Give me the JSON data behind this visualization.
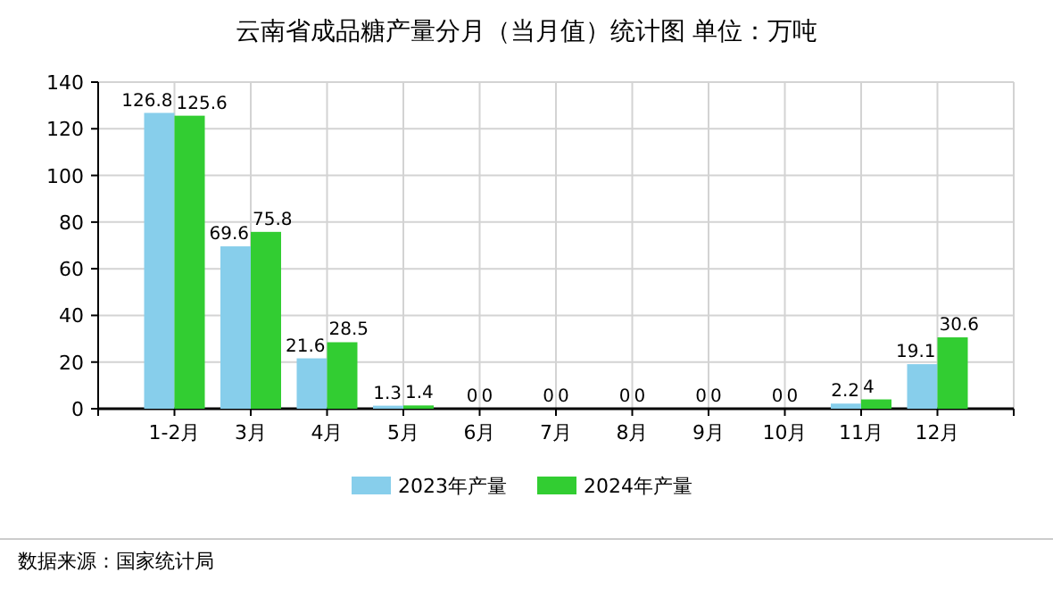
{
  "chart_data": {
    "type": "bar",
    "title": "云南省成品糖产量分月（当月值）统计图 单位：万吨",
    "categories": [
      "1-2月",
      "3月",
      "4月",
      "5月",
      "6月",
      "7月",
      "8月",
      "9月",
      "10月",
      "11月",
      "12月"
    ],
    "series": [
      {
        "name": "2023年产量",
        "color": "#87ceeb",
        "values": [
          126.8,
          69.6,
          21.6,
          1.3,
          0,
          0,
          0,
          0,
          0,
          2.2,
          19.1
        ]
      },
      {
        "name": "2024年产量",
        "color": "#32cd32",
        "values": [
          125.6,
          75.8,
          28.5,
          1.4,
          0,
          0,
          0,
          0,
          0,
          4,
          30.6
        ]
      }
    ],
    "ylim": [
      0,
      140
    ],
    "yticks": [
      0,
      20,
      40,
      60,
      80,
      100,
      120,
      140
    ],
    "grid": true,
    "legend": "bottom",
    "data_labels": true,
    "annotations": [
      "数据来源：国家统计局"
    ]
  }
}
